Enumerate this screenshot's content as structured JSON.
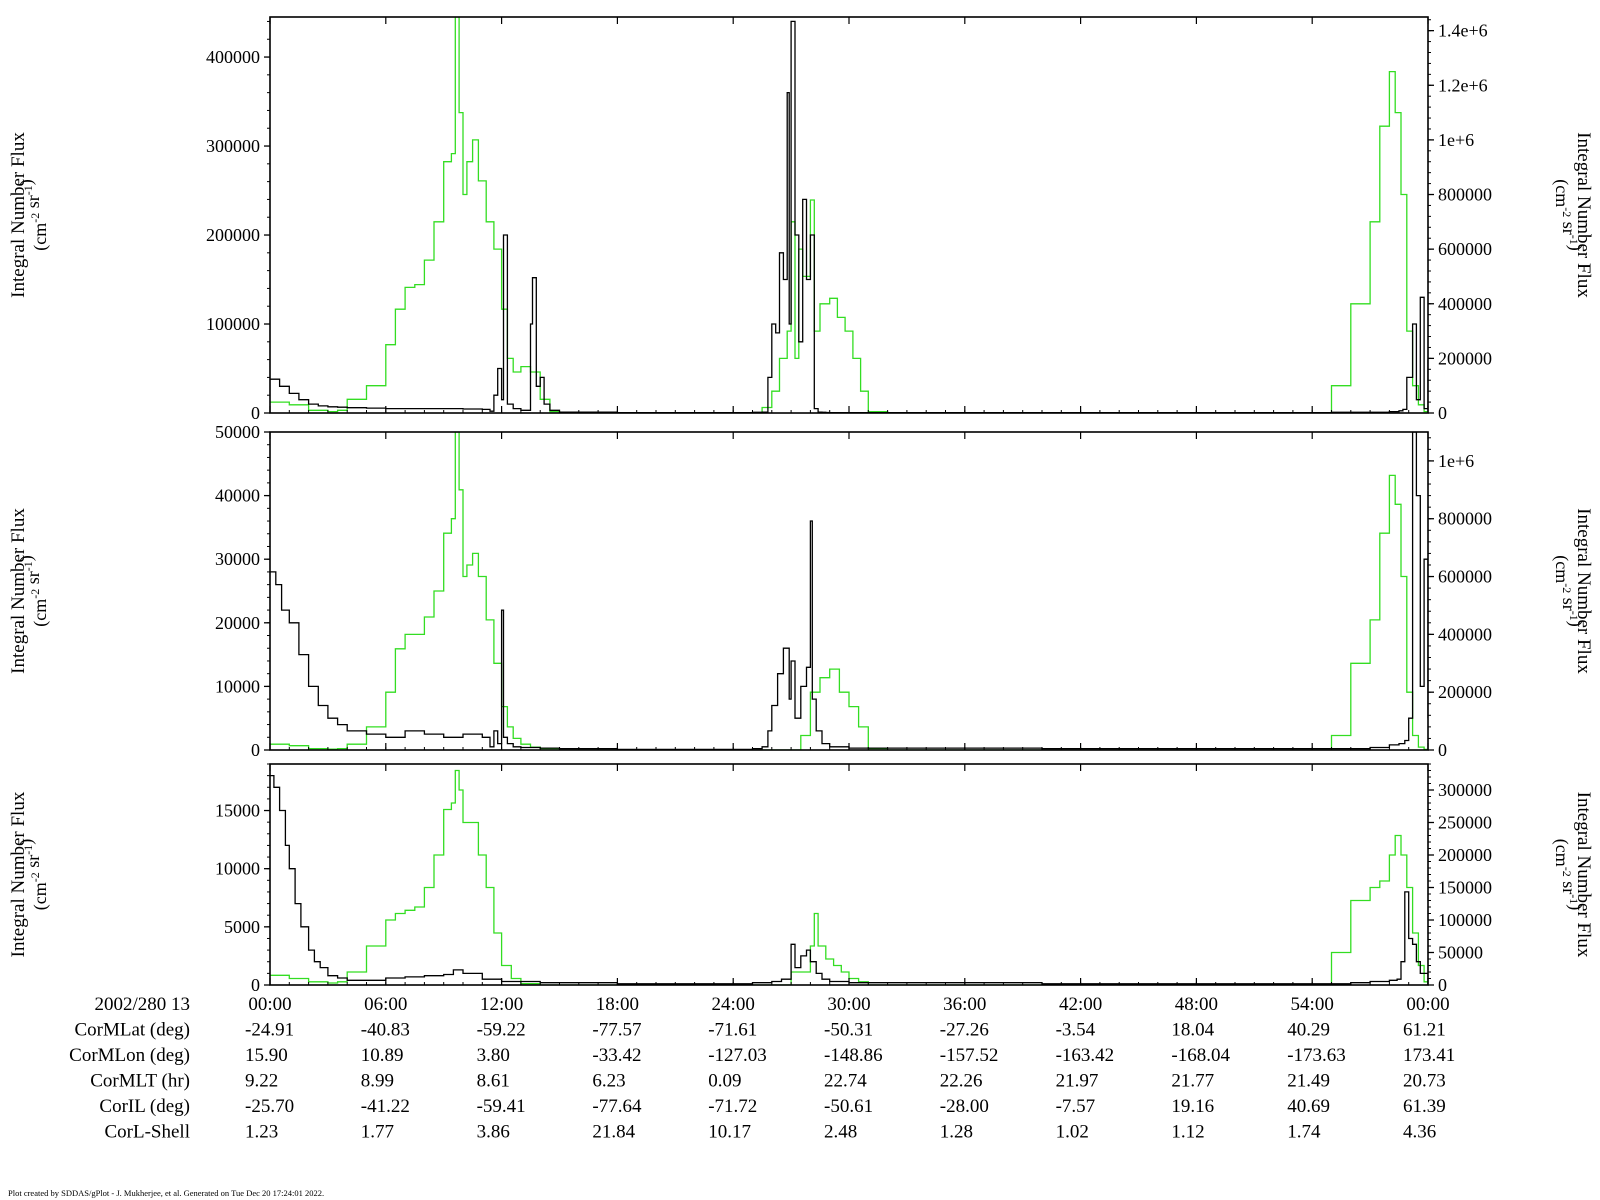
{
  "footer": "Plot created by SDDAS/gPlot - J. Mukherjee, et al.  Generated on Tue Dec 20 17:24:01 2022.",
  "colors": {
    "black_series": "#000000",
    "green_series": "#33dd22",
    "axis": "#000000"
  },
  "time_axis": {
    "date_label": "2002/280 13",
    "tick_labels": [
      "00:00",
      "06:00",
      "12:00",
      "18:00",
      "24:00",
      "30:00",
      "36:00",
      "42:00",
      "48:00",
      "54:00",
      "00:00"
    ],
    "tick_hours": [
      0,
      6,
      12,
      18,
      24,
      30,
      36,
      42,
      48,
      54,
      60
    ],
    "range_hours": [
      0,
      60
    ]
  },
  "ephemeris": [
    {
      "label": "CorMLat (deg)",
      "values": [
        "-24.91",
        "-40.83",
        "-59.22",
        "-77.57",
        "-71.61",
        "-50.31",
        "-27.26",
        "-3.54",
        "18.04",
        "40.29",
        "61.21"
      ]
    },
    {
      "label": "CorMLon (deg)",
      "values": [
        "15.90",
        "10.89",
        "3.80",
        "-33.42",
        "-127.03",
        "-148.86",
        "-157.52",
        "-163.42",
        "-168.04",
        "-173.63",
        "173.41"
      ]
    },
    {
      "label": "CorMLT (hr)",
      "values": [
        "9.22",
        "8.99",
        "8.61",
        "6.23",
        "0.09",
        "22.74",
        "22.26",
        "21.97",
        "21.77",
        "21.49",
        "20.73"
      ]
    },
    {
      "label": "CorIL (deg)",
      "values": [
        "-25.70",
        "-41.22",
        "-59.41",
        "-77.64",
        "-71.72",
        "-50.61",
        "-28.00",
        "-7.57",
        "19.16",
        "40.69",
        "61.39"
      ]
    },
    {
      "label": "CorL-Shell",
      "values": [
        "1.23",
        "1.77",
        "3.86",
        "21.84",
        "10.17",
        "2.48",
        "1.28",
        "1.02",
        "1.12",
        "1.74",
        "4.36"
      ]
    }
  ],
  "chart_data": [
    {
      "type": "line",
      "ylabel_left": "Integral Number Flux",
      "ylabel_left_units": "(cm-2 sr-1)",
      "ylabel_right": "Integral Number Flux",
      "ylabel_right_units": "(cm-2 sr-1)",
      "ylim_left": [
        0,
        445000
      ],
      "ylim_right": [
        0,
        1450000
      ],
      "left_ticks": [
        0,
        100000,
        200000,
        300000,
        400000
      ],
      "left_tick_labels": [
        "0",
        "100000",
        "200000",
        "300000",
        "400000"
      ],
      "right_ticks": [
        0,
        200000,
        400000,
        600000,
        800000,
        1000000,
        1200000,
        1400000
      ],
      "right_tick_labels": [
        "0",
        "200000",
        "400000",
        "600000",
        "800000",
        "1e+6",
        "1.2e+6",
        "1.4e+6"
      ],
      "series": [
        {
          "color": "black",
          "axis": "left",
          "x": [
            0,
            0.5,
            1,
            1.5,
            2,
            2.5,
            3,
            3.5,
            4,
            5,
            6,
            8,
            10,
            11,
            11.4,
            11.6,
            11.8,
            12.0,
            12.1,
            12.3,
            12.6,
            13,
            13.5,
            13.6,
            13.8,
            14.0,
            14.2,
            14.5,
            15,
            18,
            20,
            24,
            25,
            25.5,
            25.8,
            26.0,
            26.2,
            26.4,
            26.6,
            26.8,
            26.9,
            27.0,
            27.2,
            27.4,
            27.6,
            27.8,
            28.0,
            28.2,
            28.4,
            28.6,
            28.8,
            29,
            30,
            35,
            40,
            45,
            50,
            55,
            58,
            58.5,
            58.7,
            58.9,
            59.2,
            59.4,
            59.6,
            59.8,
            60
          ],
          "y": [
            38000,
            30000,
            22000,
            15000,
            10000,
            8000,
            7000,
            6500,
            6000,
            5500,
            5000,
            5000,
            4500,
            4000,
            2000,
            20000,
            50000,
            15000,
            200000,
            10000,
            5000,
            3000,
            100000,
            152000,
            30000,
            40000,
            10000,
            3000,
            1000,
            500,
            500,
            500,
            800,
            1000,
            40000,
            100000,
            90000,
            180000,
            150000,
            360000,
            100000,
            440000,
            200000,
            80000,
            240000,
            150000,
            200000,
            5000,
            1000,
            800,
            600,
            500,
            500,
            500,
            500,
            500,
            500,
            800,
            1500,
            2500,
            4000,
            40000,
            100000,
            15000,
            130000,
            5000,
            60000
          ]
        },
        {
          "color": "green",
          "axis": "right",
          "x": [
            0,
            1,
            2,
            3,
            3.5,
            4,
            5,
            6,
            6.5,
            7,
            7.5,
            8,
            8.5,
            9,
            9.4,
            9.6,
            9.8,
            10,
            10.2,
            10.5,
            10.8,
            11.2,
            11.6,
            12,
            12.3,
            12.6,
            13,
            13.5,
            14,
            14.5,
            15,
            18,
            24,
            25,
            25.5,
            26,
            26.4,
            26.8,
            27.0,
            27.2,
            27.4,
            27.6,
            28.0,
            28.2,
            28.5,
            29,
            29.4,
            29.8,
            30.2,
            30.6,
            31,
            32,
            40,
            50,
            54,
            55,
            56,
            57,
            57.5,
            58,
            58.3,
            58.6,
            58.9,
            59.2,
            59.5,
            59.8,
            60
          ],
          "y": [
            40000,
            30000,
            10000,
            5000,
            10000,
            50000,
            100000,
            250000,
            380000,
            460000,
            470000,
            560000,
            700000,
            920000,
            950000,
            1450000,
            1100000,
            800000,
            920000,
            1000000,
            850000,
            700000,
            600000,
            380000,
            200000,
            150000,
            170000,
            150000,
            50000,
            5000,
            0,
            0,
            0,
            0,
            20000,
            80000,
            200000,
            300000,
            700000,
            200000,
            600000,
            500000,
            780000,
            300000,
            400000,
            420000,
            350000,
            300000,
            200000,
            80000,
            5000,
            0,
            0,
            0,
            0,
            100000,
            400000,
            700000,
            1050000,
            1250000,
            1100000,
            800000,
            300000,
            100000,
            30000,
            5000,
            0
          ]
        }
      ]
    },
    {
      "type": "line",
      "ylabel_left": "Integral Number Flux",
      "ylabel_left_units": "(cm-2 sr-1)",
      "ylabel_right": "Integral Number Flux",
      "ylabel_right_units": "(cm-2 sr-1)",
      "ylim_left": [
        0,
        50000
      ],
      "ylim_right": [
        0,
        1100000
      ],
      "left_ticks": [
        0,
        10000,
        20000,
        30000,
        40000,
        50000
      ],
      "left_tick_labels": [
        "0",
        "10000",
        "20000",
        "30000",
        "40000",
        "50000"
      ],
      "right_ticks": [
        0,
        200000,
        400000,
        600000,
        800000,
        1000000
      ],
      "right_tick_labels": [
        "0",
        "200000",
        "400000",
        "600000",
        "800000",
        "1e+6"
      ],
      "series": [
        {
          "color": "black",
          "axis": "left",
          "x": [
            0,
            0.3,
            0.6,
            1,
            1.5,
            2,
            2.5,
            3,
            3.5,
            4,
            5,
            6,
            7,
            8,
            9,
            10,
            11,
            11.4,
            11.6,
            11.8,
            12.0,
            12.1,
            12.3,
            12.6,
            13,
            14,
            15,
            18,
            24,
            25,
            25.5,
            25.8,
            26.0,
            26.3,
            26.6,
            26.9,
            27.0,
            27.2,
            27.5,
            27.8,
            28.0,
            28.1,
            28.3,
            28.6,
            29,
            30,
            40,
            50,
            56,
            57,
            58,
            58.5,
            58.8,
            59.0,
            59.2,
            59.4,
            59.6,
            59.8,
            60
          ],
          "y": [
            28000,
            26000,
            22000,
            20000,
            15000,
            10000,
            7000,
            5000,
            4000,
            3000,
            2500,
            2000,
            3000,
            2500,
            2000,
            2500,
            2000,
            500,
            3000,
            1000,
            22000,
            2000,
            1000,
            500,
            400,
            300,
            200,
            100,
            100,
            200,
            500,
            3000,
            7000,
            12000,
            16000,
            8000,
            14000,
            5000,
            10000,
            13000,
            36000,
            8000,
            3000,
            1000,
            500,
            300,
            200,
            200,
            200,
            400,
            800,
            1000,
            1500,
            5000,
            50000,
            40000,
            10000,
            30000,
            5000
          ]
        },
        {
          "color": "green",
          "axis": "right",
          "x": [
            0,
            1,
            2,
            3,
            3.5,
            4,
            5,
            6,
            6.5,
            7,
            7.5,
            8,
            8.5,
            9,
            9.4,
            9.6,
            9.8,
            10,
            10.2,
            10.5,
            10.8,
            11.2,
            11.6,
            12,
            12.3,
            12.6,
            13,
            13.5,
            14,
            15,
            18,
            24,
            26,
            27,
            27.5,
            28.0,
            28.5,
            29,
            29.5,
            30,
            30.5,
            31,
            32,
            40,
            50,
            54,
            55,
            56,
            57,
            57.5,
            58,
            58.3,
            58.6,
            58.9,
            59.2,
            59.5,
            59.8,
            60
          ],
          "y": [
            20000,
            15000,
            5000,
            3000,
            5000,
            20000,
            80000,
            200000,
            350000,
            400000,
            400000,
            460000,
            550000,
            750000,
            800000,
            1100000,
            900000,
            600000,
            640000,
            680000,
            600000,
            450000,
            300000,
            150000,
            80000,
            40000,
            20000,
            10000,
            5000,
            0,
            0,
            0,
            0,
            0,
            50000,
            200000,
            250000,
            280000,
            200000,
            150000,
            80000,
            5000,
            0,
            0,
            0,
            0,
            50000,
            300000,
            450000,
            750000,
            950000,
            850000,
            600000,
            200000,
            50000,
            10000,
            2000,
            0
          ]
        }
      ]
    },
    {
      "type": "line",
      "ylabel_left": "Integral Number Flux",
      "ylabel_left_units": "(cm-2 sr-1)",
      "ylabel_right": "Integral Number Flux",
      "ylabel_right_units": "(cm-2 sr-1)",
      "ylim_left": [
        0,
        19000
      ],
      "ylim_right": [
        0,
        340000
      ],
      "left_ticks": [
        0,
        5000,
        10000,
        15000
      ],
      "left_tick_labels": [
        "0",
        "5000",
        "10000",
        "15000"
      ],
      "right_ticks": [
        0,
        50000,
        100000,
        150000,
        200000,
        250000,
        300000
      ],
      "right_tick_labels": [
        "0",
        "50000",
        "100000",
        "150000",
        "200000",
        "250000",
        "300000"
      ],
      "series": [
        {
          "color": "black",
          "axis": "left",
          "x": [
            0,
            0.2,
            0.5,
            0.8,
            1,
            1.3,
            1.6,
            2,
            2.3,
            2.6,
            3,
            3.5,
            4,
            5,
            6,
            7,
            8,
            9,
            9.5,
            10,
            11,
            12,
            14,
            18,
            24,
            25,
            26,
            26.5,
            27.0,
            27.2,
            27.5,
            27.8,
            28.0,
            28.3,
            28.6,
            29,
            30,
            40,
            50,
            56,
            57,
            58,
            58.4,
            58.6,
            58.8,
            59.0,
            59.2,
            59.4,
            59.6,
            60
          ],
          "y": [
            18000,
            17000,
            15000,
            12000,
            10000,
            7000,
            5000,
            3000,
            2000,
            1500,
            800,
            600,
            400,
            400,
            600,
            700,
            800,
            900,
            1300,
            1000,
            500,
            300,
            200,
            100,
            100,
            200,
            300,
            500,
            3500,
            1500,
            2500,
            3000,
            2000,
            1000,
            500,
            300,
            200,
            100,
            100,
            200,
            300,
            400,
            500,
            2000,
            8000,
            4000,
            3500,
            2000,
            1000,
            0
          ]
        },
        {
          "color": "green",
          "axis": "right",
          "x": [
            0,
            1,
            2,
            3,
            3.5,
            4,
            5,
            6,
            6.5,
            7,
            7.5,
            8,
            8.5,
            9,
            9.4,
            9.6,
            9.8,
            10,
            10.2,
            10.5,
            10.8,
            11.2,
            11.6,
            12,
            12.5,
            13,
            14,
            15,
            24,
            27,
            28.0,
            28.2,
            28.4,
            28.8,
            29.2,
            29.6,
            30,
            30.5,
            31,
            40,
            50,
            54,
            55,
            56,
            57,
            57.5,
            58,
            58.3,
            58.6,
            58.9,
            59.2,
            59.5,
            59.8,
            60
          ],
          "y": [
            15000,
            10000,
            5000,
            3000,
            5000,
            20000,
            60000,
            100000,
            110000,
            115000,
            120000,
            150000,
            200000,
            270000,
            280000,
            330000,
            300000,
            250000,
            250000,
            250000,
            200000,
            150000,
            80000,
            30000,
            10000,
            2000,
            0,
            0,
            0,
            20000,
            60000,
            110000,
            60000,
            40000,
            30000,
            20000,
            10000,
            5000,
            0,
            0,
            0,
            0,
            50000,
            130000,
            150000,
            160000,
            200000,
            230000,
            200000,
            150000,
            80000,
            30000,
            5000,
            0
          ]
        }
      ]
    }
  ]
}
